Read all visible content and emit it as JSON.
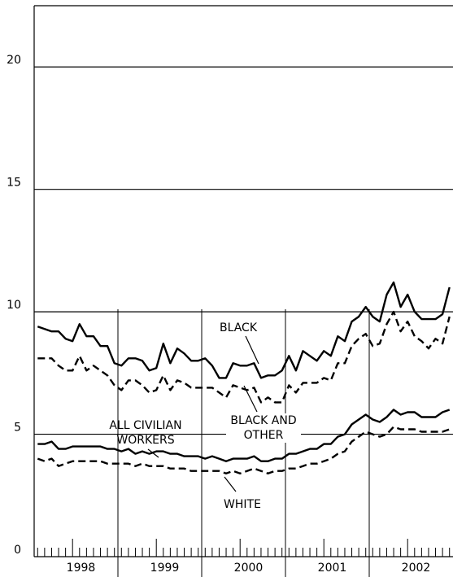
{
  "chart_data": {
    "type": "line",
    "categories": [
      null,
      null,
      null,
      null,
      null,
      null,
      "1998",
      null,
      null,
      null,
      null,
      null,
      null,
      null,
      null,
      null,
      null,
      null,
      "1999",
      null,
      null,
      null,
      null,
      null,
      null,
      null,
      null,
      null,
      null,
      null,
      "2000",
      null,
      null,
      null,
      null,
      null,
      null,
      null,
      null,
      null,
      null,
      null,
      "2001",
      null,
      null,
      null,
      null,
      null,
      null,
      null,
      null,
      null,
      null,
      null,
      "2002",
      null,
      null,
      null,
      null,
      null
    ],
    "series": [
      {
        "name": "BLACK",
        "color": "#000000",
        "style": "solid",
        "values": [
          9.4,
          9.3,
          9.2,
          9.2,
          8.9,
          8.8,
          9.5,
          9.0,
          9.0,
          8.6,
          8.6,
          7.9,
          7.8,
          8.1,
          8.1,
          8.0,
          7.6,
          7.7,
          8.7,
          7.9,
          8.5,
          8.3,
          8.0,
          8.0,
          8.1,
          7.8,
          7.3,
          7.3,
          7.9,
          7.8,
          7.8,
          7.9,
          7.3,
          7.4,
          7.4,
          7.6,
          8.2,
          7.6,
          8.4,
          8.2,
          8.0,
          8.4,
          8.2,
          9.0,
          8.8,
          9.6,
          9.8,
          10.2,
          9.8,
          9.6,
          10.7,
          11.2,
          10.2,
          10.7,
          10.0,
          9.7,
          9.7,
          9.7,
          9.9,
          11.0
        ]
      },
      {
        "name": "BLACK AND OTHER",
        "color": "#000000",
        "style": "dashed",
        "values": [
          8.1,
          8.1,
          8.1,
          7.8,
          7.6,
          7.6,
          8.2,
          7.6,
          7.8,
          7.6,
          7.4,
          7.0,
          6.8,
          7.2,
          7.2,
          7.0,
          6.7,
          6.8,
          7.4,
          6.8,
          7.2,
          7.1,
          6.9,
          6.9,
          6.9,
          6.9,
          6.7,
          6.5,
          7.0,
          6.9,
          6.8,
          6.9,
          6.3,
          6.5,
          6.3,
          6.3,
          7.0,
          6.7,
          7.1,
          7.1,
          7.1,
          7.3,
          7.2,
          7.9,
          7.9,
          8.6,
          8.9,
          9.1,
          8.6,
          8.7,
          9.5,
          10.0,
          9.2,
          9.6,
          9.0,
          8.8,
          8.5,
          8.9,
          8.7,
          9.8
        ]
      },
      {
        "name": "ALL CIVILIAN WORKERS",
        "color": "#000000",
        "style": "solid",
        "values": [
          4.6,
          4.6,
          4.7,
          4.4,
          4.4,
          4.5,
          4.5,
          4.5,
          4.5,
          4.5,
          4.4,
          4.4,
          4.3,
          4.4,
          4.2,
          4.3,
          4.2,
          4.3,
          4.3,
          4.2,
          4.2,
          4.1,
          4.1,
          4.1,
          4.0,
          4.1,
          4.0,
          3.9,
          4.0,
          4.0,
          4.0,
          4.1,
          3.9,
          3.9,
          4.0,
          4.0,
          4.2,
          4.2,
          4.3,
          4.4,
          4.4,
          4.6,
          4.6,
          4.9,
          5.0,
          5.4,
          5.6,
          5.8,
          5.6,
          5.5,
          5.7,
          6.0,
          5.8,
          5.9,
          5.9,
          5.7,
          5.7,
          5.7,
          5.9,
          6.0
        ]
      },
      {
        "name": "WHITE",
        "color": "#000000",
        "style": "dashed",
        "values": [
          4.0,
          3.9,
          4.0,
          3.7,
          3.8,
          3.9,
          3.9,
          3.9,
          3.9,
          3.9,
          3.8,
          3.8,
          3.8,
          3.8,
          3.7,
          3.8,
          3.7,
          3.7,
          3.7,
          3.6,
          3.6,
          3.6,
          3.5,
          3.5,
          3.5,
          3.5,
          3.5,
          3.4,
          3.5,
          3.4,
          3.5,
          3.6,
          3.5,
          3.4,
          3.5,
          3.5,
          3.6,
          3.6,
          3.7,
          3.8,
          3.8,
          3.9,
          4.0,
          4.2,
          4.3,
          4.7,
          4.9,
          5.1,
          5.0,
          4.9,
          5.0,
          5.3,
          5.2,
          5.2,
          5.2,
          5.1,
          5.1,
          5.1,
          5.1,
          5.2
        ]
      }
    ],
    "ylim": [
      0,
      22.5
    ],
    "yticks": [
      0,
      5,
      10,
      15,
      20
    ],
    "grid": true
  }
}
